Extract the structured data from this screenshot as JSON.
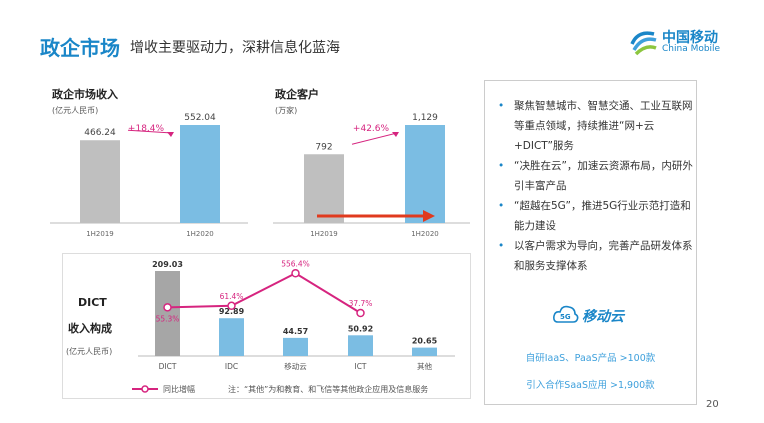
{
  "header": {
    "title": "政企市场",
    "subtitle": "增收主要驱动力，深耕信息化蓝海"
  },
  "logo": {
    "cn": "中国移动",
    "en": "China Mobile"
  },
  "chart_data": [
    {
      "type": "bar",
      "title": "政企市场收入",
      "unit": "(亿元人民币)",
      "categories": [
        "1H2019",
        "1H2020"
      ],
      "values": [
        466.24,
        552.04
      ],
      "labels": [
        "466.24",
        "552.04"
      ],
      "growth": "+18.4%",
      "colors": [
        "#bfbfbf",
        "#7bbde3"
      ]
    },
    {
      "type": "bar",
      "title": "政企客户",
      "unit": "(万家)",
      "categories": [
        "1H2019",
        "1H2020"
      ],
      "values": [
        792,
        1129
      ],
      "labels": [
        "792",
        "1,129"
      ],
      "growth": "+42.6%",
      "colors": [
        "#bfbfbf",
        "#7bbde3"
      ]
    },
    {
      "type": "bar",
      "title_line1": "DICT",
      "title_line2": "收入构成",
      "unit": "(亿元人民币)",
      "categories": [
        "DICT",
        "IDC",
        "移动云",
        "ICT",
        "其他"
      ],
      "values": [
        209.03,
        92.89,
        44.57,
        50.92,
        20.65
      ],
      "labels": [
        "209.03",
        "92.89",
        "44.57",
        "50.92",
        "20.65"
      ],
      "line_series": {
        "name": "同比增幅",
        "values": [
          55.3,
          61.4,
          556.4,
          37.7
        ],
        "labels": [
          "55.3%",
          "61.4%",
          "556.4%",
          "37.7%"
        ],
        "color": "#d6247f"
      },
      "note": "注：“其他”为和教育、和飞信等其他政企应用及信息服务"
    }
  ],
  "panel": {
    "bullets": [
      "聚焦智慧城市、智慧交通、工业互联网等重点领域，持续推进“网+云+DICT”服务",
      "“决胜在云”，加速云资源布局，内研外引丰富产品",
      "“超越在5G”，推进5G行业示范打造和能力建设",
      "以客户需求为导向，完善产品研发体系和服务支撑体系"
    ],
    "cloud_brand": "移动云",
    "cloud_badge": "5G",
    "stat1": "自研IaaS、PaaS产品 >100款",
    "stat2": "引入合作SaaS应用 >1,900款"
  },
  "page_number": "20"
}
